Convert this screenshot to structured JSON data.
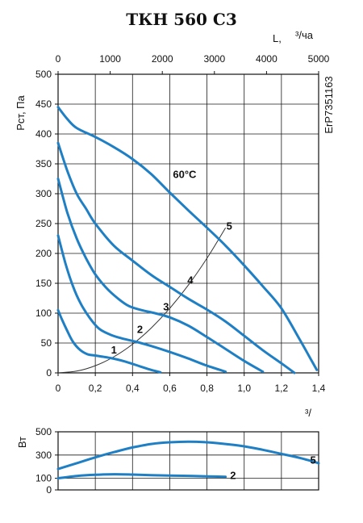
{
  "title": "ТКН 560 С3",
  "side_label": "ErP7351163",
  "chart_data": [
    {
      "type": "line",
      "x_label_top": "L,",
      "x_unit_top": "³/ча",
      "x_top_ticks": [
        "0",
        "1000",
        "2000",
        "3000",
        "4000",
        "5000"
      ],
      "x_top_lim": [
        0,
        5000
      ],
      "x_bottom_unit": "³/",
      "x_bottom_ticks": [
        "0",
        "0,2",
        "0,4",
        "0,6",
        "0,8",
        "1,0",
        "1,2",
        "1,4"
      ],
      "xlim": [
        0,
        1.4
      ],
      "ylabel": "Рст, Па",
      "y_ticks": [
        "0",
        "50",
        "100",
        "150",
        "200",
        "250",
        "300",
        "350",
        "400",
        "450",
        "500"
      ],
      "ylim": [
        0,
        500
      ],
      "grid": true,
      "series": [
        {
          "name": "1",
          "points": [
            [
              0,
              105
            ],
            [
              0.02,
              90
            ],
            [
              0.05,
              70
            ],
            [
              0.08,
              52
            ],
            [
              0.12,
              38
            ],
            [
              0.16,
              31
            ],
            [
              0.2,
              29
            ],
            [
              0.28,
              25
            ],
            [
              0.36,
              19
            ],
            [
              0.44,
              11
            ],
            [
              0.5,
              5
            ],
            [
              0.55,
              1
            ]
          ]
        },
        {
          "name": "2",
          "points": [
            [
              0,
              230
            ],
            [
              0.04,
              183
            ],
            [
              0.08,
              145
            ],
            [
              0.12,
              117
            ],
            [
              0.17,
              92
            ],
            [
              0.22,
              74
            ],
            [
              0.28,
              64
            ],
            [
              0.34,
              58
            ],
            [
              0.42,
              52
            ],
            [
              0.5,
              45
            ],
            [
              0.6,
              35
            ],
            [
              0.7,
              24
            ],
            [
              0.8,
              12
            ],
            [
              0.9,
              2
            ]
          ]
        },
        {
          "name": "3",
          "points": [
            [
              0,
              325
            ],
            [
              0.05,
              268
            ],
            [
              0.1,
              225
            ],
            [
              0.15,
              192
            ],
            [
              0.2,
              165
            ],
            [
              0.26,
              142
            ],
            [
              0.32,
              125
            ],
            [
              0.38,
              112
            ],
            [
              0.45,
              105
            ],
            [
              0.52,
              100
            ],
            [
              0.6,
              93
            ],
            [
              0.7,
              79
            ],
            [
              0.8,
              60
            ],
            [
              0.9,
              40
            ],
            [
              1.0,
              20
            ],
            [
              1.1,
              2
            ]
          ]
        },
        {
          "name": "4",
          "points": [
            [
              0,
              385
            ],
            [
              0.05,
              338
            ],
            [
              0.1,
              300
            ],
            [
              0.15,
              275
            ],
            [
              0.2,
              250
            ],
            [
              0.3,
              213
            ],
            [
              0.4,
              188
            ],
            [
              0.5,
              164
            ],
            [
              0.6,
              144
            ],
            [
              0.7,
              124
            ],
            [
              0.8,
              106
            ],
            [
              0.9,
              86
            ],
            [
              1.0,
              62
            ],
            [
              1.1,
              38
            ],
            [
              1.2,
              16
            ],
            [
              1.27,
              0
            ]
          ]
        },
        {
          "name": "5",
          "points": [
            [
              0,
              445
            ],
            [
              0.05,
              425
            ],
            [
              0.1,
              410
            ],
            [
              0.2,
              395
            ],
            [
              0.3,
              378
            ],
            [
              0.4,
              358
            ],
            [
              0.5,
              333
            ],
            [
              0.6,
              302
            ],
            [
              0.7,
              272
            ],
            [
              0.8,
              243
            ],
            [
              0.9,
              213
            ],
            [
              1.0,
              180
            ],
            [
              1.1,
              145
            ],
            [
              1.2,
              108
            ],
            [
              1.3,
              55
            ],
            [
              1.39,
              5
            ]
          ]
        }
      ],
      "system_curve": {
        "points": [
          [
            0,
            0
          ],
          [
            0.1,
            3
          ],
          [
            0.2,
            12
          ],
          [
            0.3,
            27
          ],
          [
            0.4,
            48
          ],
          [
            0.5,
            75
          ],
          [
            0.6,
            108
          ],
          [
            0.7,
            147
          ],
          [
            0.8,
            192
          ],
          [
            0.9,
            243
          ]
        ]
      },
      "annotations": [
        {
          "text": "60°С",
          "x": 0.68,
          "y": 332
        },
        {
          "text": "1",
          "x": 0.3,
          "y": 38
        },
        {
          "text": "2",
          "x": 0.44,
          "y": 72
        },
        {
          "text": "3",
          "x": 0.58,
          "y": 110
        },
        {
          "text": "4",
          "x": 0.71,
          "y": 155
        },
        {
          "text": "5",
          "x": 0.92,
          "y": 245
        }
      ]
    },
    {
      "type": "line",
      "ylabel": "Вт",
      "y_ticks": [
        "0",
        "100",
        "300",
        "500"
      ],
      "ylim": [
        0,
        500
      ],
      "xlim": [
        0,
        1.4
      ],
      "grid": true,
      "series": [
        {
          "name": "5",
          "points": [
            [
              0,
              180
            ],
            [
              0.1,
              230
            ],
            [
              0.2,
              280
            ],
            [
              0.3,
              325
            ],
            [
              0.4,
              365
            ],
            [
              0.5,
              395
            ],
            [
              0.6,
              410
            ],
            [
              0.7,
              415
            ],
            [
              0.8,
              410
            ],
            [
              0.9,
              395
            ],
            [
              1.0,
              375
            ],
            [
              1.1,
              345
            ],
            [
              1.2,
              310
            ],
            [
              1.3,
              275
            ],
            [
              1.4,
              230
            ]
          ]
        },
        {
          "name": "2",
          "points": [
            [
              0,
              100
            ],
            [
              0.1,
              120
            ],
            [
              0.2,
              130
            ],
            [
              0.3,
              135
            ],
            [
              0.4,
              132
            ],
            [
              0.5,
              127
            ],
            [
              0.6,
              123
            ],
            [
              0.7,
              121
            ],
            [
              0.8,
              117
            ],
            [
              0.9,
              113
            ]
          ]
        }
      ],
      "annotations": [
        {
          "text": "5",
          "x": 1.37,
          "y": 255
        },
        {
          "text": "2",
          "x": 0.94,
          "y": 120
        }
      ]
    }
  ]
}
